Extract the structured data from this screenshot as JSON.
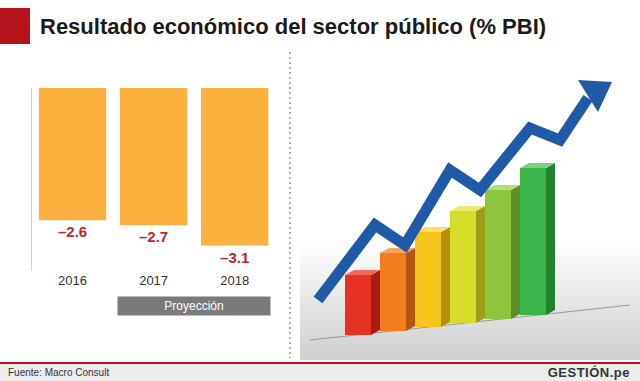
{
  "chart_data": {
    "type": "bar",
    "title": "Resultado económico del sector público (% PBI)",
    "categories": [
      "2016",
      "2017",
      "2018"
    ],
    "values": [
      -2.6,
      -2.7,
      -3.1
    ],
    "value_labels": [
      "–2.6",
      "–2.7",
      "–3.1"
    ],
    "color": "#fbb040",
    "data_labels": true,
    "ylim": [
      -3.6,
      0
    ],
    "yticks": [
      0
    ],
    "grid": true,
    "tick_labels": "x",
    "annotations": [
      {
        "text": "Proyección",
        "from": "2017",
        "to": "2018"
      }
    ],
    "source": "Fuente: Macro Consult",
    "brand": "GESTIÓN.pe"
  }
}
